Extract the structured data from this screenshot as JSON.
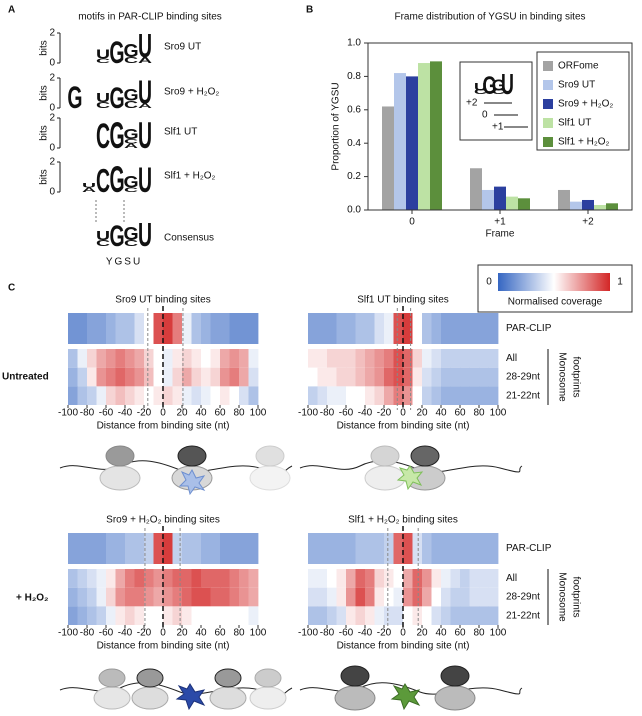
{
  "panel_labels": [
    "A",
    "B",
    "C"
  ],
  "motifs": {
    "title": "motifs in PAR-CLIP binding sites",
    "ylabel": "bits",
    "yticks": [
      0,
      2
    ],
    "colors": {
      "A": "#2e9e3a",
      "C": "#243f99",
      "G": "#f0a21e",
      "U": "#d8a11a"
    },
    "logos": [
      {
        "label": "Sro9 UT",
        "positions": [
          [
            {
              "letter": "C",
              "bits": 0.3
            },
            {
              "letter": "U",
              "bits": 0.6
            }
          ],
          [
            {
              "letter": "G",
              "bits": 1.5
            }
          ],
          [
            {
              "letter": "C",
              "bits": 0.4
            },
            {
              "letter": "G",
              "bits": 0.9
            }
          ],
          [
            {
              "letter": "A",
              "bits": 0.4
            },
            {
              "letter": "U",
              "bits": 1.6
            }
          ]
        ]
      },
      {
        "label": "Sro9 + H₂O₂",
        "positions": [
          [
            {
              "letter": "G",
              "bits": 1.5
            }
          ],
          [],
          [
            {
              "letter": "C",
              "bits": 0.4
            },
            {
              "letter": "U",
              "bits": 0.6
            }
          ],
          [
            {
              "letter": "G",
              "bits": 1.4
            }
          ],
          [
            {
              "letter": "C",
              "bits": 0.5
            },
            {
              "letter": "G",
              "bits": 0.8
            }
          ],
          [
            {
              "letter": "A",
              "bits": 0.3
            },
            {
              "letter": "U",
              "bits": 1.6
            }
          ]
        ]
      },
      {
        "label": "Slf1 UT",
        "positions": [
          [
            {
              "letter": "C",
              "bits": 1.7
            }
          ],
          [
            {
              "letter": "G",
              "bits": 1.8
            }
          ],
          [
            {
              "letter": "A",
              "bits": 0.3
            },
            {
              "letter": "C",
              "bits": 0.3
            },
            {
              "letter": "G",
              "bits": 0.7
            }
          ],
          [
            {
              "letter": "U",
              "bits": 1.8
            }
          ]
        ]
      },
      {
        "label": "Slf1 + H₂O₂",
        "positions": [
          [
            {
              "letter": "A",
              "bits": 0.3
            },
            {
              "letter": "U",
              "bits": 0.3
            }
          ],
          [
            {
              "letter": "C",
              "bits": 1.6
            }
          ],
          [
            {
              "letter": "G",
              "bits": 1.8
            }
          ],
          [
            {
              "letter": "C",
              "bits": 0.3
            },
            {
              "letter": "G",
              "bits": 0.8
            }
          ],
          [
            {
              "letter": "U",
              "bits": 1.7
            }
          ]
        ]
      }
    ],
    "consensus": {
      "label": "Consensus",
      "iupac": "YGSU",
      "positions": [
        [
          {
            "letter": "C",
            "bits": 0.4
          },
          {
            "letter": "U",
            "bits": 0.6
          }
        ],
        [
          {
            "letter": "G",
            "bits": 1.4
          }
        ],
        [
          {
            "letter": "C",
            "bits": 0.4
          },
          {
            "letter": "G",
            "bits": 0.9
          }
        ],
        [
          {
            "letter": "U",
            "bits": 1.6
          }
        ]
      ]
    }
  },
  "chart_data": [
    {
      "type": "bar",
      "title": "Frame distribution of YGSU in binding sites",
      "xlabel": "Frame",
      "ylabel": "Proportion of YGSU",
      "categories": [
        "0",
        "+1",
        "+2"
      ],
      "ylim": [
        0,
        1
      ],
      "yticks": [
        {
          "value": 0,
          "label": "0.0"
        },
        0.2,
        0.4,
        0.6,
        0.8,
        {
          "value": 1,
          "label": "1.0"
        }
      ],
      "series": [
        {
          "name": "ORFome",
          "color": "#a3a3a3",
          "values": [
            0.62,
            0.25,
            0.12
          ]
        },
        {
          "name": "Sro9 UT",
          "color": "#b3c6ea",
          "values": [
            0.82,
            0.12,
            0.05
          ]
        },
        {
          "name": "Sro9 + H₂O₂",
          "color": "#2b3f9f",
          "values": [
            0.8,
            0.14,
            0.06
          ]
        },
        {
          "name": "Slf1 UT",
          "color": "#bde2a4",
          "values": [
            0.88,
            0.08,
            0.03
          ]
        },
        {
          "name": "Slf1 + H₂O₂",
          "color": "#5c8f3c",
          "values": [
            0.89,
            0.07,
            0.04
          ]
        }
      ],
      "inset_labels": [
        "+2",
        "0",
        "+1"
      ]
    },
    {
      "type": "heatmap",
      "title": "Sro9 UT binding sites",
      "xlabel": "Distance from binding site (nt)",
      "xlim": [
        -100,
        100
      ],
      "xticks": [
        -100,
        -80,
        -60,
        -40,
        -20,
        0,
        20,
        40,
        60,
        80,
        100
      ],
      "bins": [
        -100,
        -90,
        -80,
        -70,
        -60,
        -50,
        -40,
        -30,
        -20,
        -10,
        0,
        10,
        20,
        30,
        40,
        50,
        60,
        70,
        80,
        90,
        100
      ],
      "site_bounds": [
        -16,
        21
      ],
      "rows": [
        [
          0.15,
          0.15,
          0.2,
          0.2,
          0.25,
          0.3,
          0.3,
          0.4,
          0.5,
          0.9,
          0.95,
          0.8,
          0.45,
          0.3,
          0.25,
          0.2,
          0.2,
          0.15,
          0.15,
          0.15
        ],
        [
          0.3,
          0.45,
          0.6,
          0.7,
          0.75,
          0.8,
          0.75,
          0.7,
          0.6,
          0.5,
          0.45,
          0.55,
          0.6,
          0.55,
          0.5,
          0.55,
          0.7,
          0.75,
          0.7,
          0.45
        ],
        [
          0.25,
          0.35,
          0.55,
          0.75,
          0.8,
          0.85,
          0.8,
          0.75,
          0.65,
          0.5,
          0.45,
          0.6,
          0.7,
          0.6,
          0.55,
          0.6,
          0.75,
          0.8,
          0.7,
          0.4
        ],
        [
          0.2,
          0.3,
          0.35,
          0.45,
          0.6,
          0.65,
          0.6,
          0.55,
          0.5,
          0.55,
          0.6,
          0.55,
          0.45,
          0.4,
          0.45,
          0.5,
          0.55,
          0.5,
          0.4,
          0.3
        ]
      ]
    },
    {
      "type": "heatmap",
      "title": "Slf1 UT binding sites",
      "xlabel": "Distance from binding site (nt)",
      "xlim": [
        -100,
        100
      ],
      "xticks": [
        -100,
        -80,
        -60,
        -40,
        -20,
        0,
        20,
        40,
        60,
        80,
        100
      ],
      "bins": [
        -100,
        -90,
        -80,
        -70,
        -60,
        -50,
        -40,
        -30,
        -20,
        -10,
        0,
        10,
        20,
        30,
        40,
        50,
        60,
        70,
        80,
        90,
        100
      ],
      "site_bounds": [
        -6,
        8
      ],
      "rows": [
        [
          0.2,
          0.2,
          0.2,
          0.25,
          0.25,
          0.3,
          0.3,
          0.4,
          0.45,
          0.9,
          0.95,
          0.5,
          0.3,
          0.25,
          0.2,
          0.2,
          0.2,
          0.2,
          0.2,
          0.2
        ],
        [
          0.55,
          0.55,
          0.6,
          0.6,
          0.6,
          0.65,
          0.7,
          0.75,
          0.8,
          0.9,
          0.85,
          0.6,
          0.45,
          0.4,
          0.35,
          0.35,
          0.35,
          0.35,
          0.35,
          0.35
        ],
        [
          0.5,
          0.55,
          0.55,
          0.6,
          0.6,
          0.65,
          0.7,
          0.75,
          0.85,
          0.9,
          0.85,
          0.55,
          0.4,
          0.35,
          0.3,
          0.3,
          0.3,
          0.3,
          0.3,
          0.3
        ],
        [
          0.35,
          0.4,
          0.45,
          0.45,
          0.5,
          0.5,
          0.55,
          0.6,
          0.7,
          0.8,
          0.75,
          0.5,
          0.35,
          0.3,
          0.25,
          0.25,
          0.25,
          0.25,
          0.25,
          0.25
        ]
      ]
    },
    {
      "type": "heatmap",
      "title": "Sro9 + H₂O₂ binding sites",
      "xlabel": "Distance from binding site (nt)",
      "xlim": [
        -100,
        100
      ],
      "xticks": [
        -100,
        -80,
        -60,
        -40,
        -20,
        0,
        20,
        40,
        60,
        80,
        100
      ],
      "bins": [
        -100,
        -90,
        -80,
        -70,
        -60,
        -50,
        -40,
        -30,
        -20,
        -10,
        0,
        10,
        20,
        30,
        40,
        50,
        60,
        70,
        80,
        90,
        100
      ],
      "site_bounds": [
        -19,
        18
      ],
      "rows": [
        [
          0.2,
          0.2,
          0.2,
          0.2,
          0.25,
          0.25,
          0.3,
          0.3,
          0.35,
          0.9,
          0.95,
          0.35,
          0.3,
          0.3,
          0.25,
          0.25,
          0.2,
          0.2,
          0.2,
          0.2
        ],
        [
          0.3,
          0.35,
          0.4,
          0.45,
          0.55,
          0.7,
          0.8,
          0.85,
          0.8,
          0.75,
          0.8,
          0.85,
          0.85,
          0.9,
          0.85,
          0.85,
          0.85,
          0.8,
          0.75,
          0.7
        ],
        [
          0.25,
          0.3,
          0.35,
          0.45,
          0.6,
          0.75,
          0.8,
          0.8,
          0.75,
          0.7,
          0.75,
          0.8,
          0.85,
          0.9,
          0.9,
          0.85,
          0.85,
          0.8,
          0.75,
          0.7
        ],
        [
          0.2,
          0.25,
          0.3,
          0.35,
          0.45,
          0.55,
          0.6,
          0.55,
          0.5,
          0.5,
          0.55,
          0.6,
          0.55,
          0.5,
          0.5,
          0.5,
          0.5,
          0.5,
          0.5,
          0.45
        ]
      ]
    },
    {
      "type": "heatmap",
      "title": "Slf1 + H₂O₂ binding sites",
      "xlabel": "Distance from binding site (nt)",
      "xlim": [
        -100,
        100
      ],
      "xticks": [
        -100,
        -80,
        -60,
        -40,
        -20,
        0,
        20,
        40,
        60,
        80,
        100
      ],
      "bins": [
        -100,
        -90,
        -80,
        -70,
        -60,
        -50,
        -40,
        -30,
        -20,
        -10,
        0,
        10,
        20,
        30,
        40,
        50,
        60,
        70,
        80,
        90,
        100
      ],
      "site_bounds": [
        -16,
        16
      ],
      "rows": [
        [
          0.25,
          0.25,
          0.25,
          0.25,
          0.25,
          0.3,
          0.3,
          0.3,
          0.35,
          0.85,
          0.9,
          0.4,
          0.3,
          0.25,
          0.25,
          0.25,
          0.25,
          0.25,
          0.25,
          0.25
        ],
        [
          0.45,
          0.45,
          0.5,
          0.55,
          0.7,
          0.85,
          0.8,
          0.6,
          0.55,
          0.5,
          0.7,
          0.85,
          0.75,
          0.55,
          0.45,
          0.4,
          0.35,
          0.4,
          0.4,
          0.4
        ],
        [
          0.4,
          0.4,
          0.45,
          0.55,
          0.75,
          0.9,
          0.8,
          0.55,
          0.5,
          0.45,
          0.75,
          0.85,
          0.7,
          0.5,
          0.4,
          0.35,
          0.35,
          0.4,
          0.4,
          0.4
        ],
        [
          0.3,
          0.3,
          0.35,
          0.4,
          0.55,
          0.6,
          0.55,
          0.45,
          0.4,
          0.4,
          0.5,
          0.55,
          0.5,
          0.4,
          0.35,
          0.3,
          0.3,
          0.3,
          0.3,
          0.3
        ]
      ]
    }
  ],
  "panel_c": {
    "conditions": [
      "Untreated",
      "+ H₂O₂"
    ],
    "row_labels": [
      "PAR-CLIP",
      "All",
      "28-29nt",
      "21-22nt"
    ],
    "row_group_label": [
      "Monosome",
      "footprints"
    ],
    "colorbar": {
      "min": 0,
      "max": 1,
      "label": "Normalised coverage",
      "colors": [
        "#3566c2",
        "#ffffff",
        "#d32626"
      ]
    }
  }
}
